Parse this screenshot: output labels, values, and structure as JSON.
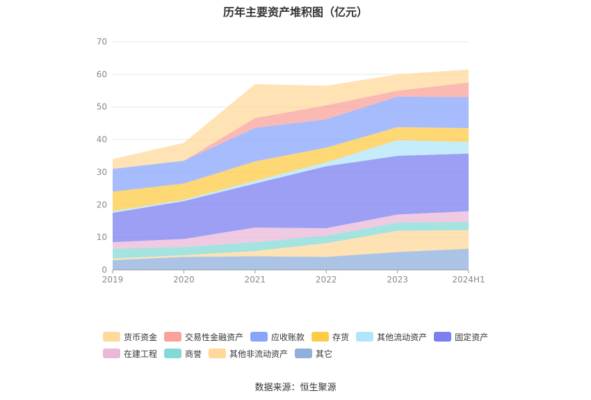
{
  "title": "历年主要资产堆积图（亿元）",
  "source": "数据来源：恒生聚源",
  "chart_data": {
    "type": "area",
    "stacked": true,
    "categories": [
      "2019",
      "2020",
      "2021",
      "2022",
      "2023",
      "2024H1"
    ],
    "ylim": [
      0,
      70
    ],
    "yticks": [
      0,
      10,
      20,
      30,
      40,
      50,
      60,
      70
    ],
    "grid": true,
    "legend_position": "bottom",
    "series": [
      {
        "name": "其它",
        "color": "#8fafdc",
        "values": [
          3.0,
          4.0,
          4.2,
          4.0,
          5.5,
          6.5
        ]
      },
      {
        "name": "其他非流动资产",
        "color": "#ffd89a",
        "values": [
          0.5,
          0.5,
          1.6,
          4.2,
          6.5,
          5.7
        ]
      },
      {
        "name": "商誉",
        "color": "#84d9d6",
        "values": [
          3.0,
          2.5,
          2.7,
          2.3,
          2.5,
          2.5
        ]
      },
      {
        "name": "在建工程",
        "color": "#eab8d8",
        "values": [
          2.0,
          2.5,
          4.5,
          2.3,
          2.5,
          3.3
        ]
      },
      {
        "name": "固定资产",
        "color": "#7b7ff0",
        "values": [
          9.0,
          11.6,
          13.5,
          19.0,
          18.0,
          17.7
        ]
      },
      {
        "name": "其他流动资产",
        "color": "#b0e6fa",
        "values": [
          0.5,
          0.4,
          0.8,
          1.2,
          4.8,
          3.5
        ]
      },
      {
        "name": "存货",
        "color": "#fccb47",
        "values": [
          6.0,
          5.0,
          6.0,
          4.5,
          4.0,
          4.3
        ]
      },
      {
        "name": "应收账款",
        "color": "#89a5fb",
        "values": [
          7.0,
          7.0,
          10.3,
          8.7,
          9.4,
          9.5
        ]
      },
      {
        "name": "交易性金融资产",
        "color": "#f9a19b",
        "values": [
          0.0,
          0.0,
          3.0,
          4.3,
          1.8,
          4.5
        ]
      },
      {
        "name": "货币资金",
        "color": "#ffd99c",
        "values": [
          3.0,
          5.5,
          10.4,
          6.0,
          5.0,
          4.0
        ]
      }
    ]
  },
  "legend": {
    "row1": [
      {
        "label": "货币资金",
        "color": "#ffd99c"
      },
      {
        "label": "交易性金融资产",
        "color": "#f9a19b"
      },
      {
        "label": "应收账款",
        "color": "#89a5fb"
      },
      {
        "label": "存货",
        "color": "#fccb47"
      },
      {
        "label": "其他流动资产",
        "color": "#b0e6fa"
      },
      {
        "label": "固定资产",
        "color": "#7b7ff0"
      }
    ],
    "row2": [
      {
        "label": "在建工程",
        "color": "#eab8d8"
      },
      {
        "label": "商誉",
        "color": "#84d9d6"
      },
      {
        "label": "其他非流动资产",
        "color": "#ffd89a"
      },
      {
        "label": "其它",
        "color": "#8fafdc"
      }
    ]
  }
}
